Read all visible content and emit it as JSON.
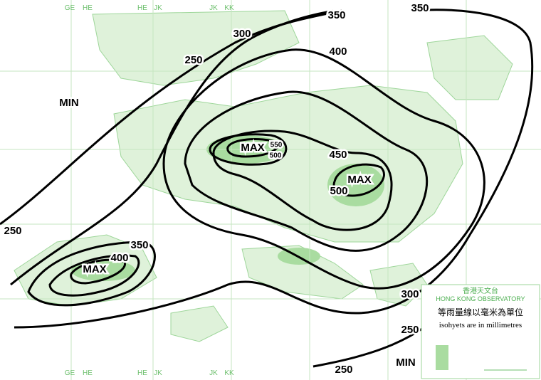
{
  "grid_labels": {
    "top": [
      "GE",
      "HE",
      "HE",
      "JK",
      "JK",
      "KK"
    ],
    "bottom": [
      "GE",
      "HE",
      "HE",
      "JK",
      "JK",
      "KK"
    ]
  },
  "isohyet_labels": [
    "350",
    "350",
    "300",
    "250",
    "400",
    "MIN",
    "MAX",
    "550",
    "500",
    "450",
    "MAX",
    "500",
    "250",
    "350",
    "400",
    "MAX",
    "300",
    "250",
    "MIN",
    "250"
  ],
  "legend": {
    "title_zh": "香港天文台",
    "title_en": "HONG KONG OBSERVATORY",
    "note_zh": "等雨量線以毫米為單位",
    "note_en": "isohyets are in millimetres"
  }
}
